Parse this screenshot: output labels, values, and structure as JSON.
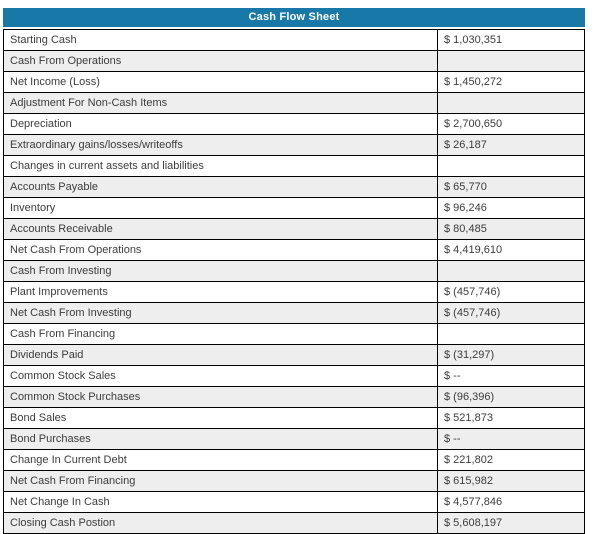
{
  "sheet": {
    "title": "Cash Flow Sheet",
    "colors": {
      "header_bg": "#1878a8",
      "header_text": "#ffffff",
      "row_bg": "#ffffff",
      "row_alt_bg": "#eeeeee",
      "border": "#000000",
      "text": "#3c3c3c"
    },
    "rows": [
      {
        "label": "Starting Cash",
        "value": "$ 1,030,351"
      },
      {
        "label": "Cash From Operations",
        "value": ""
      },
      {
        "label": "Net Income (Loss)",
        "value": "$ 1,450,272"
      },
      {
        "label": "Adjustment For Non-Cash Items",
        "value": ""
      },
      {
        "label": "Depreciation",
        "value": "$ 2,700,650"
      },
      {
        "label": "Extraordinary gains/losses/writeoffs",
        "value": "$ 26,187"
      },
      {
        "label": "Changes in current assets and liabilities",
        "value": ""
      },
      {
        "label": "Accounts Payable",
        "value": "$ 65,770"
      },
      {
        "label": "Inventory",
        "value": "$ 96,246"
      },
      {
        "label": "Accounts Receivable",
        "value": "$ 80,485"
      },
      {
        "label": "Net Cash From Operations",
        "value": "$ 4,419,610"
      },
      {
        "label": "Cash From Investing",
        "value": ""
      },
      {
        "label": "Plant Improvements",
        "value": "$ (457,746)"
      },
      {
        "label": "Net Cash From Investing",
        "value": "$ (457,746)"
      },
      {
        "label": "Cash From Financing",
        "value": ""
      },
      {
        "label": "Dividends Paid",
        "value": "$ (31,297)"
      },
      {
        "label": "Common Stock Sales",
        "value": "$ --"
      },
      {
        "label": "Common Stock Purchases",
        "value": "$ (96,396)"
      },
      {
        "label": "Bond Sales",
        "value": "$ 521,873"
      },
      {
        "label": "Bond Purchases",
        "value": "$ --"
      },
      {
        "label": "Change In Current Debt",
        "value": "$ 221,802"
      },
      {
        "label": "Net Cash From Financing",
        "value": "$ 615,982"
      },
      {
        "label": "Net Change In Cash",
        "value": "$ 4,577,846"
      },
      {
        "label": "Closing Cash Postion",
        "value": "$ 5,608,197"
      }
    ]
  }
}
